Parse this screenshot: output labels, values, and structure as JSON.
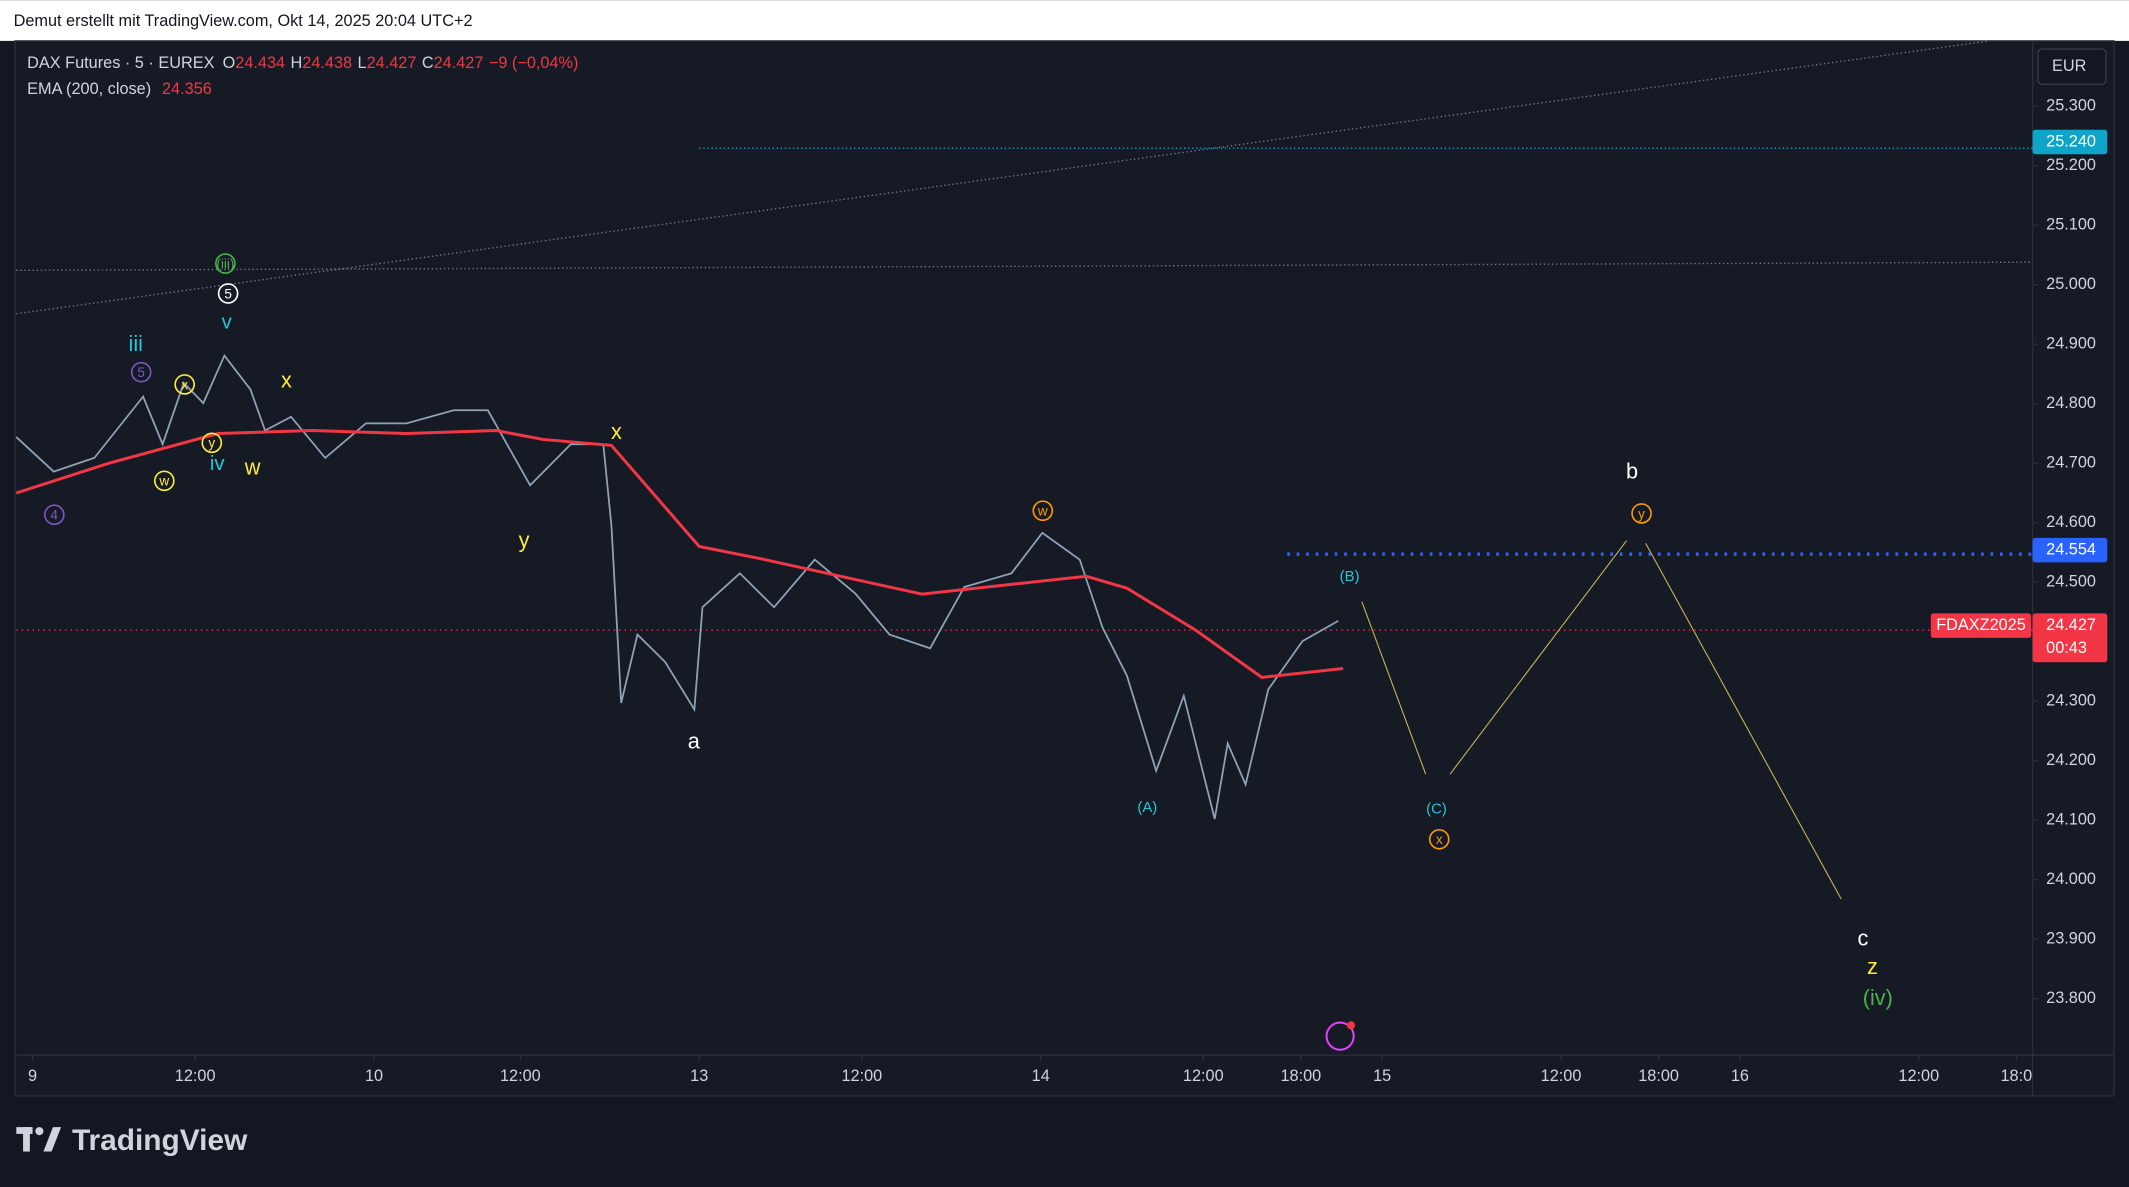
{
  "header": "Demut erstellt mit TradingView.com, Okt 14, 2025 20:04 UTC+2",
  "logo": "TradingView",
  "chart_data": {
    "type": "line",
    "legend": {
      "symbol": "DAX Futures · 5 · EUREX",
      "o_label": "O",
      "o": "24.434",
      "h_label": "H",
      "h": "24.438",
      "l_label": "L",
      "l": "24.427",
      "c_label": "C",
      "c": "24.427",
      "change": "−9 (−0,04%)",
      "ema_label": "EMA (200, close)",
      "ema": "24.356"
    },
    "currency": "EUR",
    "series": [
      {
        "name": "DAX Futures",
        "color": "#8fa3b8",
        "x": [
          -1,
          1.3,
          3.8,
          6.8,
          8,
          9.3,
          10.5,
          11.8,
          13.4,
          14.3,
          15.9,
          18,
          20.5,
          23,
          25.9,
          28,
          30.6,
          33.1,
          35.1,
          35.6,
          36.2,
          37.2,
          38.9,
          40.7,
          41.2,
          43.5,
          45.6,
          48.1,
          50.6,
          52.7,
          55.2,
          57.3,
          60.2,
          62.1,
          64.4,
          65.8,
          67.3,
          69.1,
          70.8,
          72.7,
          73.5,
          74.6,
          76,
          78.1,
          80.3
        ],
        "values": [
          24744,
          24686,
          24709,
          24812,
          24732,
          24835,
          24801,
          24881,
          24824,
          24755,
          24778,
          24709,
          24767,
          24767,
          24789,
          24789,
          24663,
          24732,
          24732,
          24595,
          24297,
          24412,
          24366,
          24286,
          24458,
          24515,
          24458,
          24538,
          24481,
          24412,
          24389,
          24492,
          24515,
          24583,
          24538,
          24424,
          24343,
          24183,
          24309,
          24102,
          24229,
          24160,
          24320,
          24401,
          24435
        ]
      },
      {
        "name": "EMA (200, close)",
        "color": "#f23645",
        "x": [
          -1,
          4.7,
          11.4,
          17.2,
          23,
          28.5,
          31.4,
          35.6,
          41,
          44.7,
          54.7,
          61.4,
          64.8,
          67.3,
          71.5,
          75.6,
          80.6
        ],
        "values": [
          24650,
          24700,
          24750,
          24755,
          24750,
          24755,
          24740,
          24730,
          24560,
          24540,
          24480,
          24500,
          24510,
          24490,
          24420,
          24340,
          24355
        ]
      }
    ],
    "xlim": [
      -1,
      123
    ],
    "xticks": [
      {
        "value": 0,
        "label": "9"
      },
      {
        "value": 10,
        "label": "12:00"
      },
      {
        "value": 21,
        "label": "10"
      },
      {
        "value": 30,
        "label": "12:00"
      },
      {
        "value": 41,
        "label": "13"
      },
      {
        "value": 51,
        "label": "12:00"
      },
      {
        "value": 62,
        "label": "14"
      },
      {
        "value": 72,
        "label": "12:00"
      },
      {
        "value": 78,
        "label": "18:00"
      },
      {
        "value": 83,
        "label": "15"
      },
      {
        "value": 94,
        "label": "12:00"
      },
      {
        "value": 100,
        "label": "18:00"
      },
      {
        "value": 105,
        "label": "16"
      },
      {
        "value": 116,
        "label": "12:00"
      },
      {
        "value": 122,
        "label": "18:0"
      }
    ],
    "ylim": [
      23705,
      25410
    ],
    "yticks": [
      {
        "value": 25300,
        "label": "25.300"
      },
      {
        "value": 25200,
        "label": "25.200"
      },
      {
        "value": 25100,
        "label": "25.100"
      },
      {
        "value": 25000,
        "label": "25.000"
      },
      {
        "value": 24900,
        "label": "24.900"
      },
      {
        "value": 24800,
        "label": "24.800"
      },
      {
        "value": 24700,
        "label": "24.700"
      },
      {
        "value": 24600,
        "label": "24.600"
      },
      {
        "value": 24500,
        "label": "24.500"
      },
      {
        "value": 24400,
        "label": "24.400"
      },
      {
        "value": 24300,
        "label": "24.300"
      },
      {
        "value": 24200,
        "label": "24.200"
      },
      {
        "value": 24100,
        "label": "24.100"
      },
      {
        "value": 24000,
        "label": "24.000"
      },
      {
        "value": 23900,
        "label": "23.900"
      },
      {
        "value": 23800,
        "label": "23.800"
      }
    ],
    "price_tags": [
      {
        "value": 25240,
        "label": "25.240",
        "color": "#0ea5c9"
      },
      {
        "value": 24554,
        "label": "24.554",
        "color": "#2962ff"
      },
      {
        "value": 24427,
        "label": "24.427",
        "color": "#f23645"
      }
    ],
    "countdown": "00:43",
    "ticker": "FDAXZ2025",
    "annotations": [
      {
        "text": "(iii)",
        "color": "#4caf50"
      },
      {
        "text": "5",
        "color": "#ffffff"
      },
      {
        "text": "v",
        "color": "#26c6da"
      },
      {
        "text": "iii",
        "color": "#26c6da"
      },
      {
        "text": "5",
        "color": "#7e57c2"
      },
      {
        "text": "x",
        "color": "#ffeb3b"
      },
      {
        "text": "x",
        "color": "#ffeb3b"
      },
      {
        "text": "y",
        "color": "#ffeb3b"
      },
      {
        "text": "iv",
        "color": "#26c6da"
      },
      {
        "text": "w",
        "color": "#ffeb3b"
      },
      {
        "text": "w",
        "color": "#ffeb3b"
      },
      {
        "text": "4",
        "color": "#7e57c2"
      },
      {
        "text": "x",
        "color": "#ffeb3b"
      },
      {
        "text": "y",
        "color": "#ffeb3b"
      },
      {
        "text": "a",
        "color": "#ffffff"
      },
      {
        "text": "w",
        "color": "#ff9800"
      },
      {
        "text": "(B)",
        "color": "#26c6da"
      },
      {
        "text": "(A)",
        "color": "#26c6da"
      },
      {
        "text": "(C)",
        "color": "#26c6da"
      },
      {
        "text": "x",
        "color": "#ff9800"
      },
      {
        "text": "b",
        "color": "#ffffff"
      },
      {
        "text": "y",
        "color": "#ff9800"
      },
      {
        "text": "c",
        "color": "#ffffff"
      },
      {
        "text": "z",
        "color": "#ffeb3b"
      },
      {
        "text": "(iv)",
        "color": "#4caf50"
      }
    ]
  }
}
